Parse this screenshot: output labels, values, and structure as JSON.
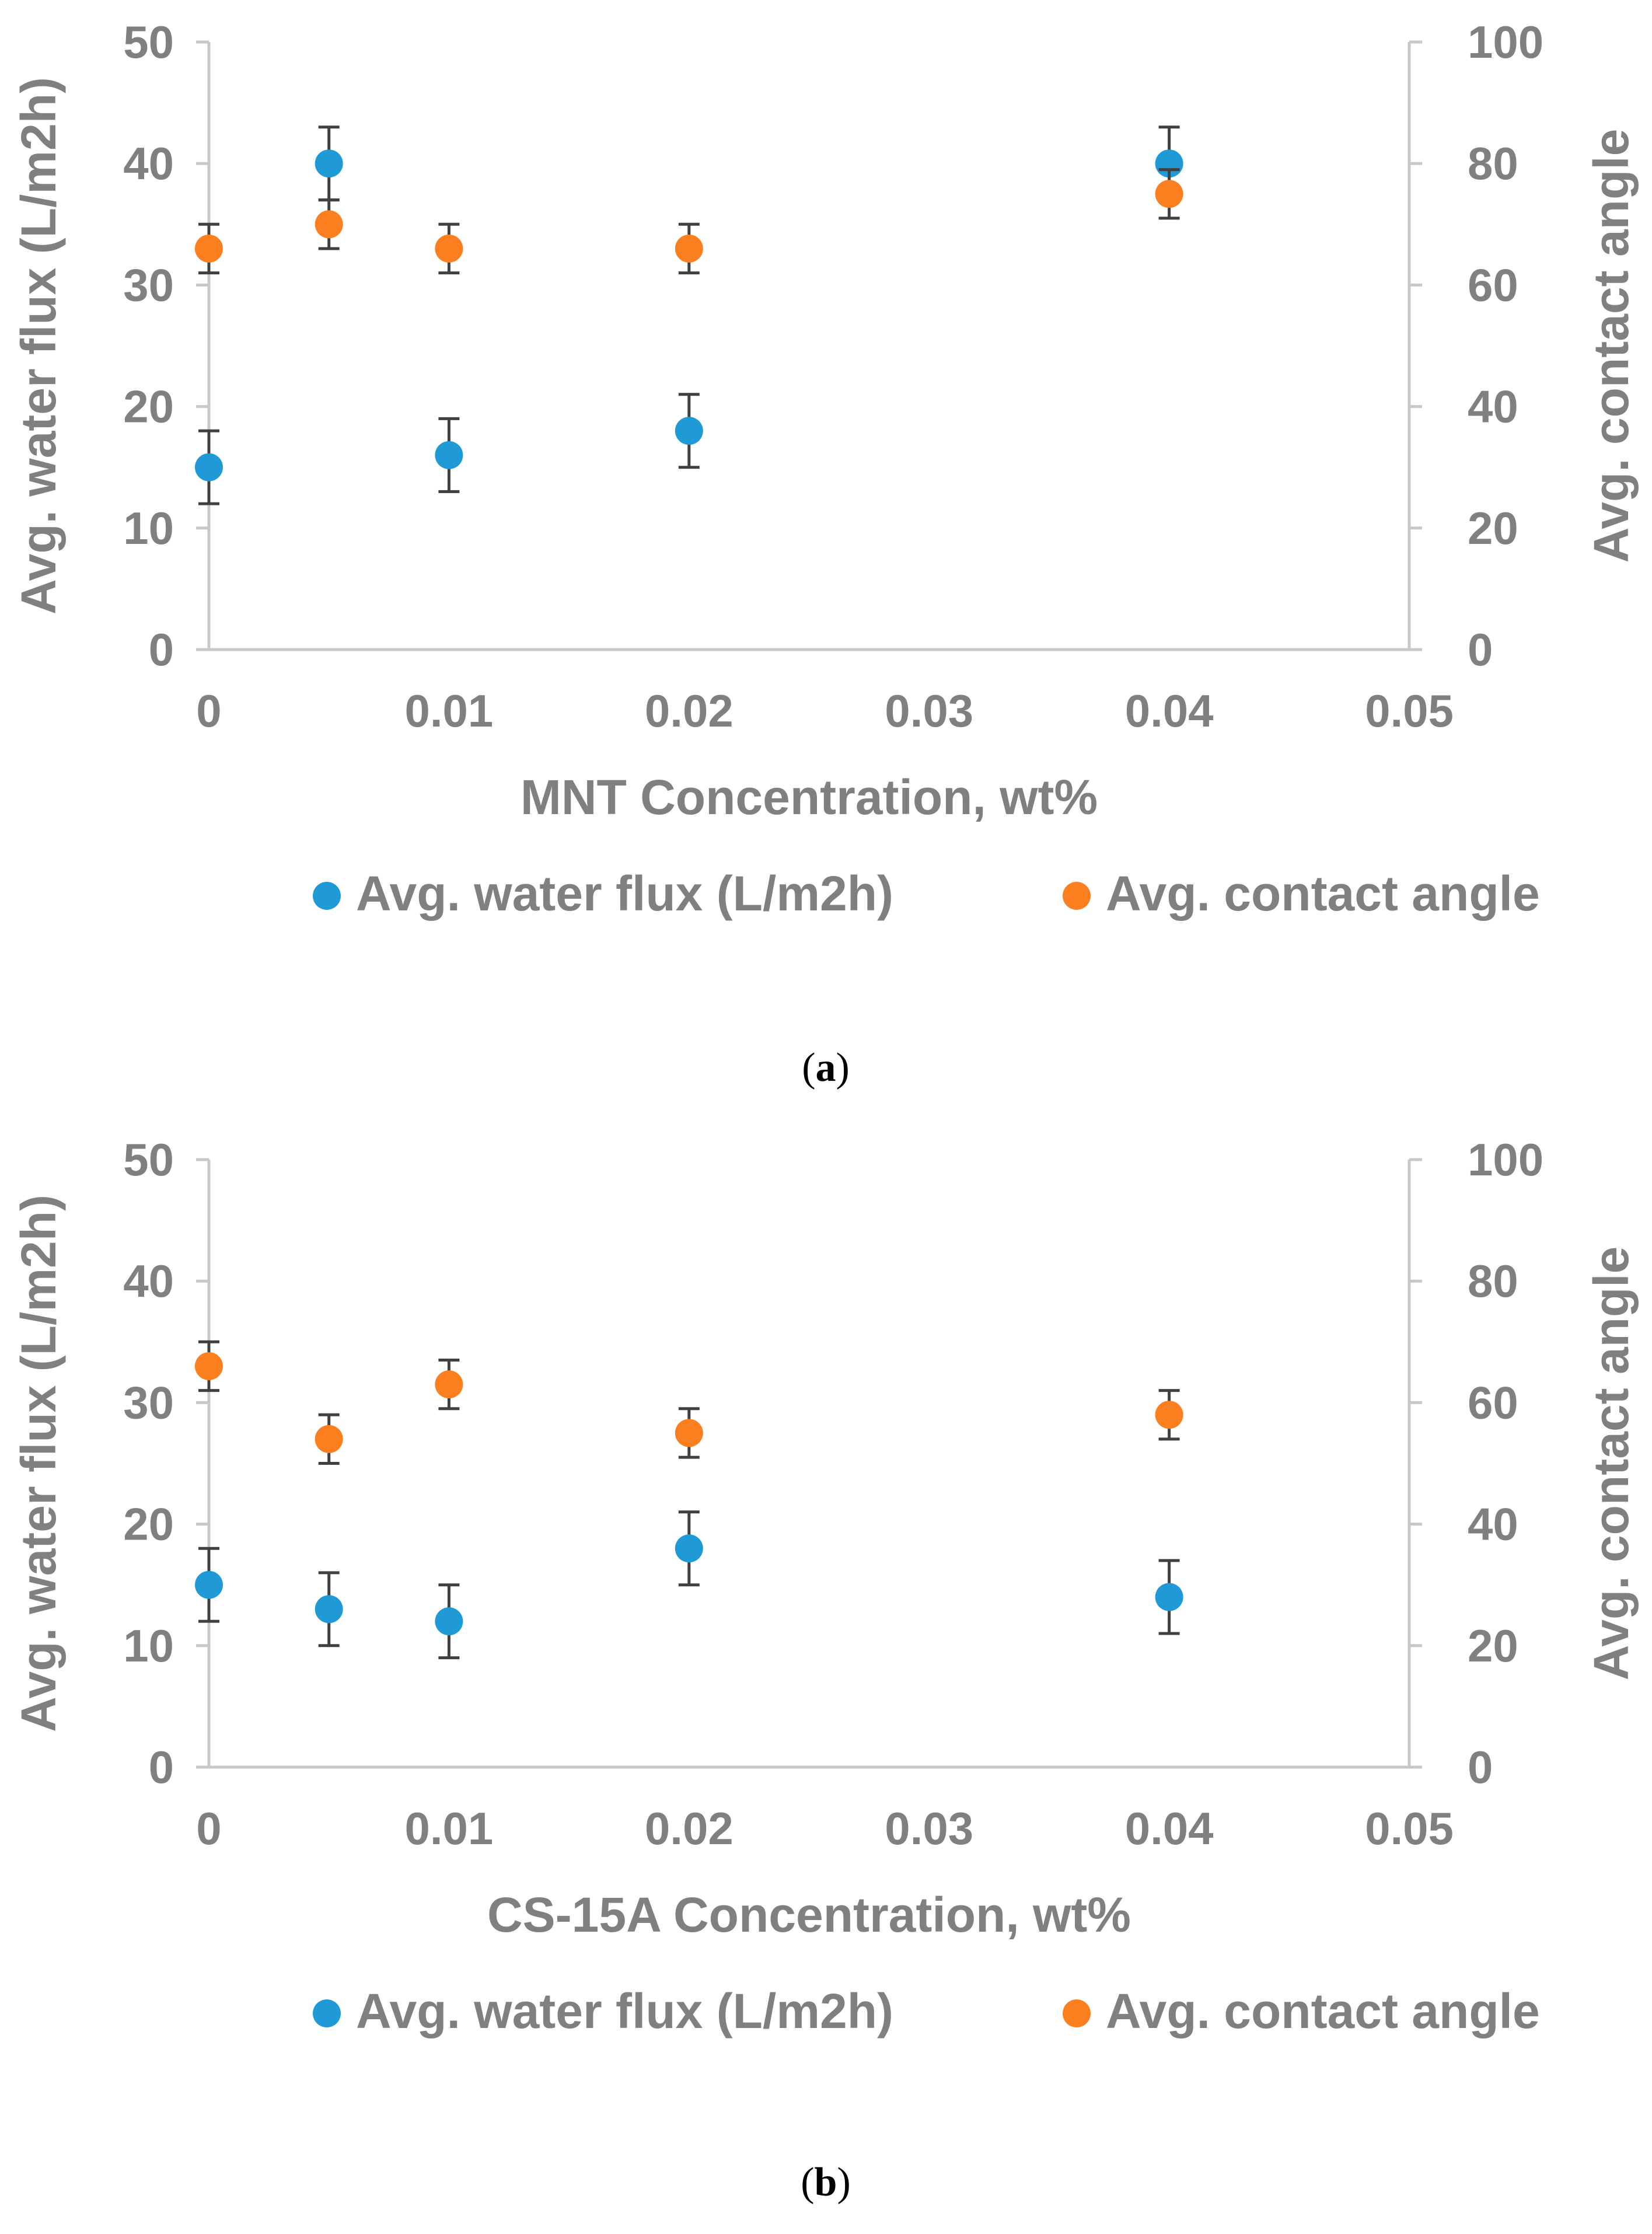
{
  "chart_data": [
    {
      "type": "scatter",
      "panel_label": "a",
      "xlabel": "MNT Concentration, wt%",
      "ylabel_left": "Avg. water flux (L/m2h)",
      "ylabel_right": "Avg. contact angle",
      "xlim": [
        0,
        0.05
      ],
      "ylim_left": [
        0,
        50
      ],
      "ylim_right": [
        0,
        100
      ],
      "x_ticks": [
        "0",
        "0.01",
        "0.02",
        "0.03",
        "0.04",
        "0.05"
      ],
      "y_ticks_left": [
        "0",
        "10",
        "20",
        "30",
        "40",
        "50"
      ],
      "y_ticks_right": [
        "0",
        "20",
        "40",
        "60",
        "80",
        "100"
      ],
      "legend_position": "bottom",
      "grid": false,
      "series": [
        {
          "name": "Avg. water flux (L/m2h)",
          "axis": "left",
          "color": "#1f9ad7",
          "x": [
            0,
            0.005,
            0.01,
            0.02,
            0.04
          ],
          "y": [
            15,
            40,
            16,
            18,
            40
          ],
          "error": [
            3,
            3,
            3,
            3,
            3
          ]
        },
        {
          "name": "Avg. contact angle",
          "axis": "right",
          "color": "#fb7f1e",
          "x": [
            0,
            0.005,
            0.01,
            0.02,
            0.04
          ],
          "y": [
            66,
            70,
            66,
            66,
            75
          ],
          "error": [
            4,
            4,
            4,
            4,
            4
          ]
        }
      ]
    },
    {
      "type": "scatter",
      "panel_label": "b",
      "xlabel": "CS-15A Concentration, wt%",
      "ylabel_left": "Avg. water flux (L/m2h)",
      "ylabel_right": "Avg. contact angle",
      "xlim": [
        0,
        0.05
      ],
      "ylim_left": [
        0,
        50
      ],
      "ylim_right": [
        0,
        100
      ],
      "x_ticks": [
        "0",
        "0.01",
        "0.02",
        "0.03",
        "0.04",
        "0.05"
      ],
      "y_ticks_left": [
        "0",
        "10",
        "20",
        "30",
        "40",
        "50"
      ],
      "y_ticks_right": [
        "0",
        "20",
        "40",
        "60",
        "80",
        "100"
      ],
      "legend_position": "bottom",
      "grid": false,
      "series": [
        {
          "name": "Avg. water flux (L/m2h)",
          "axis": "left",
          "color": "#1f9ad7",
          "x": [
            0,
            0.005,
            0.01,
            0.02,
            0.04
          ],
          "y": [
            15,
            13,
            12,
            18,
            14
          ],
          "error": [
            3,
            3,
            3,
            3,
            3
          ]
        },
        {
          "name": "Avg. contact angle",
          "axis": "right",
          "color": "#fb7f1e",
          "x": [
            0,
            0.005,
            0.01,
            0.02,
            0.04
          ],
          "y": [
            66,
            54,
            63,
            55,
            58
          ],
          "error": [
            4,
            4,
            4,
            4,
            4
          ]
        }
      ]
    }
  ],
  "style": {
    "axis_color": "#c8c8c8",
    "tick_text_color": "#808080",
    "error_bar_color": "#404040"
  }
}
